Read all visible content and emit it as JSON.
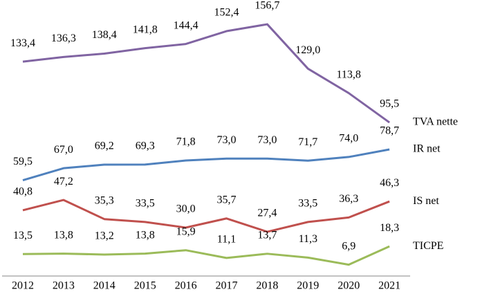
{
  "chart_data": {
    "type": "line",
    "categories": [
      "2012",
      "2013",
      "2014",
      "2015",
      "2016",
      "2017",
      "2018",
      "2019",
      "2020",
      "2021"
    ],
    "ylim": [
      0,
      160
    ],
    "series": [
      {
        "name": "TVA nette",
        "color": "#8064a2",
        "values": [
          133.4,
          136.3,
          138.4,
          141.8,
          144.4,
          152.4,
          156.7,
          129.0,
          113.8,
          95.5
        ],
        "value_labels": [
          "133,4",
          "136,3",
          "138,4",
          "141,8",
          "144,4",
          "152,4",
          "156,7",
          "129,0",
          "113,8",
          "95,5"
        ]
      },
      {
        "name": "IR net",
        "color": "#4f81bd",
        "values": [
          59.5,
          67.0,
          69.2,
          69.3,
          71.8,
          73.0,
          73.0,
          71.7,
          74.0,
          78.7
        ],
        "value_labels": [
          "59,5",
          "67,0",
          "69,2",
          "69,3",
          "71,8",
          "73,0",
          "73,0",
          "71,7",
          "74,0",
          "78,7"
        ]
      },
      {
        "name": "IS net",
        "color": "#c0504d",
        "values": [
          40.8,
          47.2,
          35.3,
          33.5,
          30.0,
          35.7,
          27.4,
          33.5,
          36.3,
          46.3
        ],
        "value_labels": [
          "40,8",
          "47,2",
          "35,3",
          "33,5",
          "30,0",
          "35,7",
          "27,4",
          "33,5",
          "36,3",
          "46,3"
        ]
      },
      {
        "name": "TICPE",
        "color": "#9bbb59",
        "values": [
          13.5,
          13.8,
          13.2,
          13.8,
          15.9,
          11.1,
          13.7,
          11.3,
          6.9,
          18.3
        ],
        "value_labels": [
          "13,5",
          "13,8",
          "13,2",
          "13,8",
          "15,9",
          "11,1",
          "13,7",
          "11,3",
          "6,9",
          "18,3"
        ]
      }
    ]
  }
}
